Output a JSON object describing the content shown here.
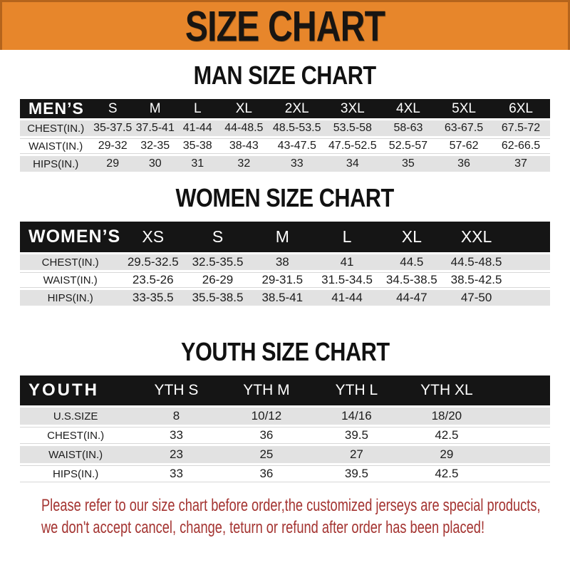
{
  "banner": {
    "title": "SIZE CHART"
  },
  "colors": {
    "accent_orange": "#e7862b",
    "header_bar_black": "#151515",
    "row_gray": "#e2e2e2",
    "footer_red": "#a43431"
  },
  "sections": [
    {
      "title": "MAN SIZE CHART",
      "header_label": "MEN’S",
      "columns": [
        "S",
        "M",
        "L",
        "XL",
        "2XL",
        "3XL",
        "4XL",
        "5XL",
        "6XL"
      ],
      "rows": [
        {
          "label": "CHEST(IN.)",
          "values": [
            "35-37.5",
            "37.5-41",
            "41-44",
            "44-48.5",
            "48.5-53.5",
            "53.5-58",
            "58-63",
            "63-67.5",
            "67.5-72"
          ]
        },
        {
          "label": "WAIST(IN.)",
          "values": [
            "29-32",
            "32-35",
            "35-38",
            "38-43",
            "43-47.5",
            "47.5-52.5",
            "52.5-57",
            "57-62",
            "62-66.5"
          ]
        },
        {
          "label": "HIPS(IN.)",
          "values": [
            "29",
            "30",
            "31",
            "32",
            "33",
            "34",
            "35",
            "36",
            "37"
          ]
        }
      ]
    },
    {
      "title": "WOMEN SIZE CHART",
      "header_label": "WOMEN’S",
      "columns": [
        "XS",
        "S",
        "M",
        "L",
        "XL",
        "XXL"
      ],
      "rows": [
        {
          "label": "CHEST(IN.)",
          "values": [
            "29.5-32.5",
            "32.5-35.5",
            "38",
            "41",
            "44.5",
            "44.5-48.5"
          ]
        },
        {
          "label": "WAIST(IN.)",
          "values": [
            "23.5-26",
            "26-29",
            "29-31.5",
            "31.5-34.5",
            "34.5-38.5",
            "38.5-42.5"
          ]
        },
        {
          "label": "HIPS(IN.)",
          "values": [
            "33-35.5",
            "35.5-38.5",
            "38.5-41",
            "41-44",
            "44-47",
            "47-50"
          ]
        }
      ]
    },
    {
      "title": "YOUTH SIZE CHART",
      "header_label": "YOUTH",
      "columns": [
        "YTH S",
        "YTH M",
        "YTH L",
        "YTH XL"
      ],
      "rows": [
        {
          "label": "U.S.SIZE",
          "values": [
            "8",
            "10/12",
            "14/16",
            "18/20"
          ]
        },
        {
          "label": "CHEST(IN.)",
          "values": [
            "33",
            "36",
            "39.5",
            "42.5"
          ]
        },
        {
          "label": "WAIST(IN.)",
          "values": [
            "23",
            "25",
            "27",
            "29"
          ]
        },
        {
          "label": "HIPS(IN.)",
          "values": [
            "33",
            "36",
            "39.5",
            "42.5"
          ]
        }
      ]
    }
  ],
  "footer": {
    "line1": "Please refer to our size chart before order,the customized jerseys are special products,",
    "line2": "we don't accept cancel, change, teturn or refund after order has been placed!"
  }
}
